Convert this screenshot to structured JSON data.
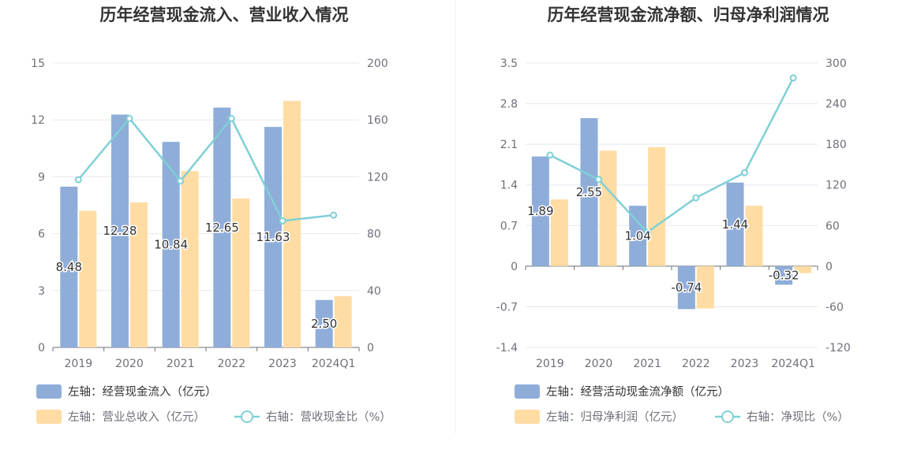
{
  "colors": {
    "primary_bar": "#8fadd9",
    "secondary_bar": "#ffdca3",
    "line": "#7fd0d6",
    "grid": "#e4e8f0",
    "axis": "#6e7079"
  },
  "chart_data": [
    {
      "type": "bar",
      "title": "历年经营现金流入、营业收入情况",
      "categories": [
        "2019",
        "2020",
        "2021",
        "2022",
        "2023",
        "2024Q1"
      ],
      "left_axis": {
        "ticks": [
          "0",
          "3",
          "6",
          "9",
          "12",
          "15"
        ],
        "ylim": [
          0,
          15
        ]
      },
      "right_axis": {
        "ticks": [
          "0",
          "40",
          "80",
          "120",
          "160",
          "200"
        ],
        "ylim": [
          0,
          200
        ]
      },
      "series": [
        {
          "name": "左轴：经营现金流入（亿元）",
          "axis": "left",
          "kind": "bar",
          "values": [
            8.48,
            12.28,
            10.84,
            12.65,
            11.63,
            2.5
          ],
          "labels": [
            "8.48",
            "12.28",
            "10.84",
            "12.65",
            "11.63",
            "2.50"
          ]
        },
        {
          "name": "左轴：营业总收入（亿元）",
          "axis": "left",
          "kind": "bar",
          "values": [
            7.2,
            7.65,
            9.3,
            7.85,
            13.0,
            2.7
          ]
        },
        {
          "name": "右轴：营收现金比（%）",
          "axis": "right",
          "kind": "line",
          "values": [
            118,
            161,
            117,
            161,
            89,
            93
          ]
        }
      ]
    },
    {
      "type": "bar",
      "title": "历年经营现金流净额、归母净利润情况",
      "categories": [
        "2019",
        "2020",
        "2021",
        "2022",
        "2023",
        "2024Q1"
      ],
      "left_axis": {
        "ticks": [
          "-1.4",
          "-0.7",
          "0",
          "0.7",
          "1.4",
          "2.1",
          "2.8",
          "3.5"
        ],
        "ylim": [
          -1.4,
          3.5
        ]
      },
      "right_axis": {
        "ticks": [
          "-120",
          "-60",
          "0",
          "60",
          "120",
          "180",
          "240",
          "300"
        ],
        "ylim": [
          -120,
          300
        ]
      },
      "series": [
        {
          "name": "左轴：经营活动现金流净额（亿元）",
          "axis": "left",
          "kind": "bar",
          "values": [
            1.89,
            2.55,
            1.04,
            -0.74,
            1.44,
            -0.32
          ],
          "labels": [
            "1.89",
            "2.55",
            "1.04",
            "-0.74",
            "1.44",
            "-0.32"
          ]
        },
        {
          "name": "左轴：归母净利润（亿元）",
          "axis": "left",
          "kind": "bar",
          "values": [
            1.15,
            1.99,
            2.05,
            -0.73,
            1.04,
            -0.12
          ]
        },
        {
          "name": "右轴：净现比（%）",
          "axis": "right",
          "kind": "line",
          "values": [
            164,
            128,
            50,
            101,
            138,
            278
          ]
        }
      ]
    }
  ]
}
